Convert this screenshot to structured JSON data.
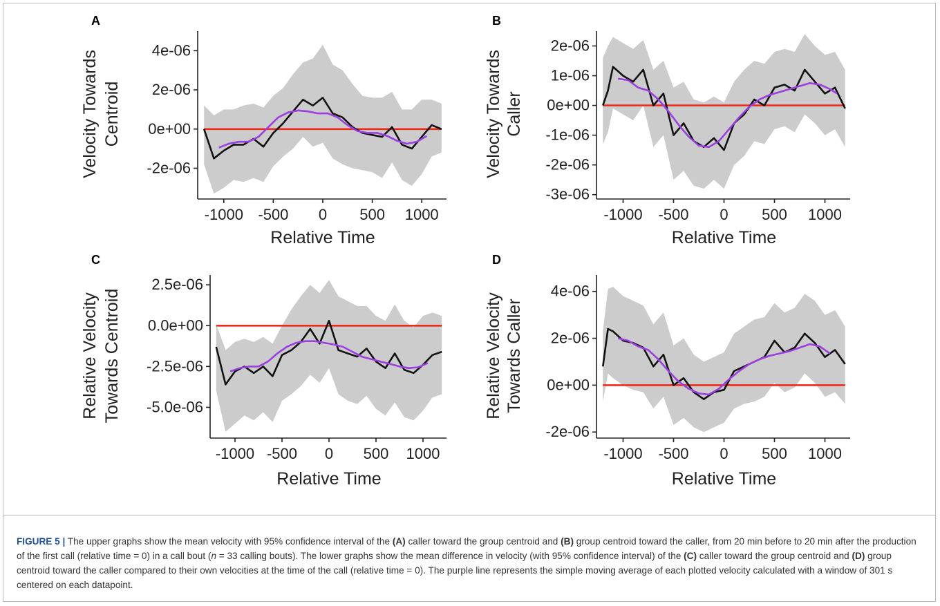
{
  "colors": {
    "ci_band": "#cccccc",
    "mean_line": "#111111",
    "moving_average": "#9b3fe0",
    "reference_line": "#ee2a1b",
    "axis": "#222222"
  },
  "chart_data": [
    {
      "panel": "A",
      "type": "line",
      "ylabel": [
        "Velocity Towards",
        "Centroid"
      ],
      "xlabel": "Relative Time",
      "xlim": [
        -1250,
        1250
      ],
      "ylim": [
        -3.5e-06,
        5e-06
      ],
      "x_ticks": [
        -1000,
        -500,
        0,
        500,
        1000
      ],
      "x_tick_labels": [
        "-1000",
        "-500",
        "0",
        "500",
        "1000"
      ],
      "y_ticks": [
        -2e-06,
        0,
        2e-06,
        4e-06
      ],
      "y_tick_labels": [
        "-2e-06",
        "0e+00",
        "2e-06",
        "4e-06"
      ],
      "reference_y": 0,
      "x_range": [
        -1200,
        1200
      ],
      "grid": false,
      "legend": "none",
      "series": [
        {
          "role": "moving-average",
          "x": [
            -1050,
            -950,
            -850,
            -750,
            -650,
            -550,
            -450,
            -350,
            -250,
            -150,
            -50,
            50,
            150,
            250,
            350,
            450,
            550,
            650,
            750,
            850,
            950,
            1050
          ],
          "y": [
            -9.5e-07,
            -7.5e-07,
            -6.5e-07,
            -6.5e-07,
            -4e-07,
            1e-07,
            6e-07,
            8.5e-07,
            9.5e-07,
            9e-07,
            8e-07,
            8e-07,
            6e-07,
            2e-07,
            -1e-07,
            -2e-07,
            -2e-07,
            -3.5e-07,
            -6e-07,
            -7.5e-07,
            -6.5e-07,
            -3.5e-07
          ]
        },
        {
          "role": "mean",
          "x": [
            -1200,
            -1100,
            -1000,
            -900,
            -800,
            -700,
            -600,
            -500,
            -400,
            -300,
            -200,
            -100,
            0,
            100,
            200,
            300,
            400,
            500,
            600,
            700,
            800,
            900,
            1000,
            1100,
            1200
          ],
          "y": [
            0,
            -1.5e-06,
            -1.1e-06,
            -8e-07,
            -8e-07,
            -5e-07,
            -9e-07,
            -2e-07,
            3e-07,
            9e-07,
            1.5e-06,
            1.2e-06,
            1.6e-06,
            8e-07,
            6e-07,
            1e-07,
            -2e-07,
            -3e-07,
            -4e-07,
            1e-07,
            -8e-07,
            -1e-06,
            -4e-07,
            2e-07,
            0
          ],
          "ci_upper": [
            1.2e-06,
            7e-07,
            1e-06,
            1e-06,
            1.2e-06,
            1.3e-06,
            1.1e-06,
            1.7e-06,
            2.1e-06,
            2.8e-06,
            3.4e-06,
            3.6e-06,
            4.3e-06,
            3.3e-06,
            3e-06,
            2.3e-06,
            1.7e-06,
            1.6e-06,
            1.6e-06,
            1.9e-06,
            1e-06,
            1e-06,
            1.5e-06,
            1.5e-06,
            1.3e-06
          ],
          "ci_lower": [
            -1.8e-06,
            -3.3e-06,
            -3e-06,
            -2.6e-06,
            -2.7e-06,
            -2.5e-06,
            -2.7e-06,
            -1.9e-06,
            -1.4e-06,
            -1e-06,
            -4e-07,
            -9e-07,
            -7e-07,
            -1.5e-06,
            -1.8e-06,
            -2e-06,
            -2.1e-06,
            -2.2e-06,
            -2.5e-06,
            -1.7e-06,
            -2.6e-06,
            -2.9e-06,
            -2.3e-06,
            -1.4e-06,
            -1.2e-06
          ]
        }
      ]
    },
    {
      "panel": "B",
      "type": "line",
      "ylabel": [
        "Velocity Towards",
        "Caller"
      ],
      "xlabel": "Relative Time",
      "xlim": [
        -1250,
        1250
      ],
      "ylim": [
        -3.1e-06,
        2.5e-06
      ],
      "x_ticks": [
        -1000,
        -500,
        0,
        500,
        1000
      ],
      "x_tick_labels": [
        "-1000",
        "-500",
        "0",
        "500",
        "1000"
      ],
      "y_ticks": [
        -3e-06,
        -2e-06,
        -1e-06,
        0,
        1e-06,
        2e-06
      ],
      "y_tick_labels": [
        "-3e-06",
        "-2e-06",
        "-1e-06",
        "0e+00",
        "1e-06",
        "2e-06"
      ],
      "reference_y": 0,
      "x_range": [
        -1200,
        1200
      ],
      "grid": false,
      "legend": "none",
      "series": [
        {
          "role": "moving-average",
          "x": [
            -1050,
            -950,
            -850,
            -750,
            -650,
            -550,
            -450,
            -350,
            -250,
            -150,
            -50,
            50,
            150,
            250,
            350,
            450,
            550,
            650,
            750,
            850,
            950,
            1050,
            1120
          ],
          "y": [
            9e-07,
            8.5e-07,
            6e-07,
            5e-07,
            2e-07,
            -2e-07,
            -6.5e-07,
            -1.05e-06,
            -1.35e-06,
            -1.4e-06,
            -1.2e-06,
            -8e-07,
            -4e-07,
            -5e-08,
            2e-07,
            3.5e-07,
            4.5e-07,
            5.5e-07,
            6.5e-07,
            7.5e-07,
            7e-07,
            5.5e-07,
            4e-07
          ]
        },
        {
          "role": "mean",
          "x": [
            -1200,
            -1150,
            -1100,
            -1000,
            -900,
            -800,
            -700,
            -600,
            -500,
            -400,
            -300,
            -200,
            -100,
            0,
            100,
            200,
            300,
            400,
            500,
            600,
            700,
            800,
            900,
            1000,
            1100,
            1200
          ],
          "y": [
            0,
            5e-07,
            1.3e-06,
            1e-06,
            8e-07,
            1.2e-06,
            0,
            4e-07,
            -1e-06,
            -6e-07,
            -1.2e-06,
            -1.4e-06,
            -1.1e-06,
            -1.5e-06,
            -6e-07,
            -3e-07,
            2e-07,
            0,
            6e-07,
            7e-07,
            5e-07,
            1.2e-06,
            8e-07,
            4e-07,
            6e-07,
            -1e-07
          ],
          "ci_upper": [
            1.6e-06,
            2e-06,
            2.3e-06,
            2.1e-06,
            1.9e-06,
            2.2e-06,
            1.2e-06,
            1.5e-06,
            6e-07,
            8e-07,
            2e-07,
            1e-07,
            3e-07,
            1e-07,
            8e-07,
            1.2e-06,
            1.5e-06,
            1.4e-06,
            1.8e-06,
            1.9e-06,
            1.8e-06,
            2.4e-06,
            2e-06,
            1.7e-06,
            1.8e-06,
            1.2e-06
          ],
          "ci_lower": [
            -1.3e-06,
            -9e-07,
            -1e-07,
            -3e-07,
            -5e-07,
            0,
            -1.4e-06,
            -1e-06,
            -2.5e-06,
            -2.2e-06,
            -2.7e-06,
            -2.8e-06,
            -2.5e-06,
            -2.8e-06,
            -2e-06,
            -1.7e-06,
            -1.2e-06,
            -1.3e-06,
            -8e-07,
            -7e-07,
            -9e-07,
            -3e-07,
            -6e-07,
            -1e-06,
            -8e-07,
            -1.4e-06
          ]
        }
      ]
    },
    {
      "panel": "C",
      "type": "line",
      "ylabel": [
        "Relative Velocity",
        "Towards Centroid"
      ],
      "xlabel": "Relative Time",
      "xlim": [
        -1250,
        1250
      ],
      "ylim": [
        -6.8e-06,
        3.1e-06
      ],
      "x_ticks": [
        -1000,
        -500,
        0,
        500,
        1000
      ],
      "x_tick_labels": [
        "-1000",
        "-500",
        "0",
        "500",
        "1000"
      ],
      "y_ticks": [
        -5e-06,
        -2.5e-06,
        0,
        2.5e-06
      ],
      "y_tick_labels": [
        "-5.0e-06",
        "-2.5e-06",
        "0.0e+00",
        "2.5e-06"
      ],
      "reference_y": 0,
      "x_range": [
        -1200,
        1200
      ],
      "grid": false,
      "legend": "none",
      "series": [
        {
          "role": "moving-average",
          "x": [
            -1050,
            -950,
            -850,
            -750,
            -650,
            -550,
            -450,
            -350,
            -250,
            -150,
            -50,
            50,
            150,
            250,
            350,
            450,
            550,
            650,
            750,
            850,
            950,
            1050
          ],
          "y": [
            -2.8e-06,
            -2.6e-06,
            -2.5e-06,
            -2.5e-06,
            -2.2e-06,
            -1.7e-06,
            -1.3e-06,
            -1.05e-06,
            -9.5e-07,
            -9.5e-07,
            -1.05e-06,
            -1.15e-06,
            -1.3e-06,
            -1.6e-06,
            -1.9e-06,
            -2.05e-06,
            -2.2e-06,
            -2.35e-06,
            -2.5e-06,
            -2.6e-06,
            -2.55e-06,
            -2.3e-06
          ]
        },
        {
          "role": "mean",
          "x": [
            -1200,
            -1100,
            -1000,
            -900,
            -800,
            -700,
            -600,
            -500,
            -400,
            -300,
            -200,
            -100,
            0,
            100,
            200,
            300,
            400,
            500,
            600,
            700,
            800,
            900,
            1000,
            1100,
            1200
          ],
          "y": [
            -1.3e-06,
            -3.6e-06,
            -2.8e-06,
            -2.5e-06,
            -2.9e-06,
            -2.5e-06,
            -3.1e-06,
            -1.8e-06,
            -1.5e-06,
            -1e-06,
            -2e-07,
            -1.1e-06,
            3e-07,
            -1.5e-06,
            -1.7e-06,
            -1.9e-06,
            -1.4e-06,
            -2.2e-06,
            -2.6e-06,
            -1.7e-06,
            -2.7e-06,
            -2.9e-06,
            -2.4e-06,
            -1.8e-06,
            -1.6e-06
          ],
          "ci_upper": [
            1e-07,
            -1.5e-06,
            -1e-06,
            -8e-07,
            -1e-06,
            -7e-07,
            -1.1e-06,
            0,
            1e-06,
            1.8e-06,
            2.5e-06,
            2e-06,
            2.8e-06,
            1.8e-06,
            1.5e-06,
            1.2e-06,
            1.2e-06,
            6e-07,
            3e-07,
            1.3e-06,
            3e-07,
            -1e-07,
            6e-07,
            8e-07,
            6e-07
          ],
          "ci_lower": [
            -4e-06,
            -6.5e-06,
            -6e-06,
            -5.5e-06,
            -5.8e-06,
            -5.3e-06,
            -5.9e-06,
            -4.6e-06,
            -4.2e-06,
            -3.7e-06,
            -3e-06,
            -3.5e-06,
            -2.6e-06,
            -4.2e-06,
            -4.6e-06,
            -4.8e-06,
            -4.3e-06,
            -5.1e-06,
            -5.5e-06,
            -4.7e-06,
            -5.6e-06,
            -5.8e-06,
            -5.2e-06,
            -4.4e-06,
            -4.2e-06
          ]
        }
      ]
    },
    {
      "panel": "D",
      "type": "line",
      "ylabel": [
        "Relative Velocity",
        "Towards Caller"
      ],
      "xlabel": "Relative Time",
      "xlim": [
        -1250,
        1250
      ],
      "ylim": [
        -2.2e-06,
        4.7e-06
      ],
      "x_ticks": [
        -1000,
        -500,
        0,
        500,
        1000
      ],
      "x_tick_labels": [
        "-1000",
        "-500",
        "0",
        "500",
        "1000"
      ],
      "y_ticks": [
        -2e-06,
        0,
        2e-06,
        4e-06
      ],
      "y_tick_labels": [
        "-2e-06",
        "0e+00",
        "2e-06",
        "4e-06"
      ],
      "reference_y": 0,
      "x_range": [
        -1200,
        1200
      ],
      "grid": false,
      "legend": "none",
      "series": [
        {
          "role": "moving-average",
          "x": [
            -1050,
            -950,
            -850,
            -750,
            -650,
            -550,
            -450,
            -350,
            -250,
            -150,
            -50,
            50,
            150,
            250,
            350,
            450,
            550,
            650,
            750,
            850,
            950,
            1050
          ],
          "y": [
            2e-06,
            1.9e-06,
            1.65e-06,
            1.5e-06,
            1.1e-06,
            6e-07,
            1.5e-07,
            -1.5e-07,
            -3.5e-07,
            -4e-07,
            -1.5e-07,
            2.5e-07,
            6e-07,
            9e-07,
            1.1e-06,
            1.25e-06,
            1.35e-06,
            1.45e-06,
            1.6e-06,
            1.75e-06,
            1.65e-06,
            1.35e-06
          ]
        },
        {
          "role": "mean",
          "x": [
            -1200,
            -1150,
            -1100,
            -1000,
            -900,
            -800,
            -700,
            -600,
            -500,
            -400,
            -300,
            -200,
            -100,
            0,
            100,
            200,
            300,
            400,
            500,
            600,
            700,
            800,
            900,
            1000,
            1100,
            1200
          ],
          "y": [
            8e-07,
            2.4e-06,
            2.3e-06,
            1.9e-06,
            1.8e-06,
            1.6e-06,
            8e-07,
            1.3e-06,
            0,
            3e-07,
            -3e-07,
            -6e-07,
            -3e-07,
            -2e-07,
            6e-07,
            8e-07,
            1e-06,
            1.2e-06,
            1.9e-06,
            1.4e-06,
            1.6e-06,
            2.2e-06,
            1.8e-06,
            1.2e-06,
            1.5e-06,
            9e-07
          ],
          "ci_upper": [
            2.3e-06,
            4.1e-06,
            4.2e-06,
            3.8e-06,
            3.6e-06,
            3.4e-06,
            2.6e-06,
            3.1e-06,
            1.7e-06,
            2e-06,
            1.3e-06,
            1e-06,
            1.2e-06,
            1.4e-06,
            2.2e-06,
            2.5e-06,
            2.8e-06,
            2.9e-06,
            3.5e-06,
            3.1e-06,
            3.3e-06,
            3.9e-06,
            3.6e-06,
            3e-06,
            3.2e-06,
            2.5e-06
          ],
          "ci_lower": [
            -7e-07,
            5e-07,
            3e-07,
            0,
            -2e-07,
            -3e-07,
            -1e-06,
            -5e-07,
            -1.7e-06,
            -1.4e-06,
            -1.8e-06,
            -2e-06,
            -1.8e-06,
            -1.6e-06,
            -1e-06,
            -8e-07,
            -7e-07,
            -5e-07,
            1e-07,
            -3e-07,
            -1e-07,
            5e-07,
            1e-07,
            -5e-07,
            -3e-07,
            -8e-07
          ]
        }
      ]
    }
  ],
  "caption": {
    "figure_label": "FIGURE 5 |",
    "segments": [
      {
        "text": " The upper graphs show the mean velocity with 95% confidence interval of the ",
        "bold": false
      },
      {
        "text": "(A)",
        "bold": true
      },
      {
        "text": " caller toward the group centroid and ",
        "bold": false
      },
      {
        "text": "(B)",
        "bold": true
      },
      {
        "text": " group centroid toward the caller, from 20 min before to 20 min after the production of the first call (relative time = 0) in a call bout (",
        "bold": false
      },
      {
        "text": "n",
        "bold": false,
        "italic": true
      },
      {
        "text": " = 33 calling bouts). The lower graphs show the mean difference in velocity (with 95% confidence interval) of the ",
        "bold": false
      },
      {
        "text": "(C)",
        "bold": true
      },
      {
        "text": " caller toward the group centroid and ",
        "bold": false
      },
      {
        "text": "(D)",
        "bold": true
      },
      {
        "text": " group centroid toward the caller compared to their own velocities at the time of the call (relative time = 0). The purple line represents the simple moving average of each plotted velocity calculated with a window of 301 s centered on each datapoint.",
        "bold": false
      }
    ]
  }
}
